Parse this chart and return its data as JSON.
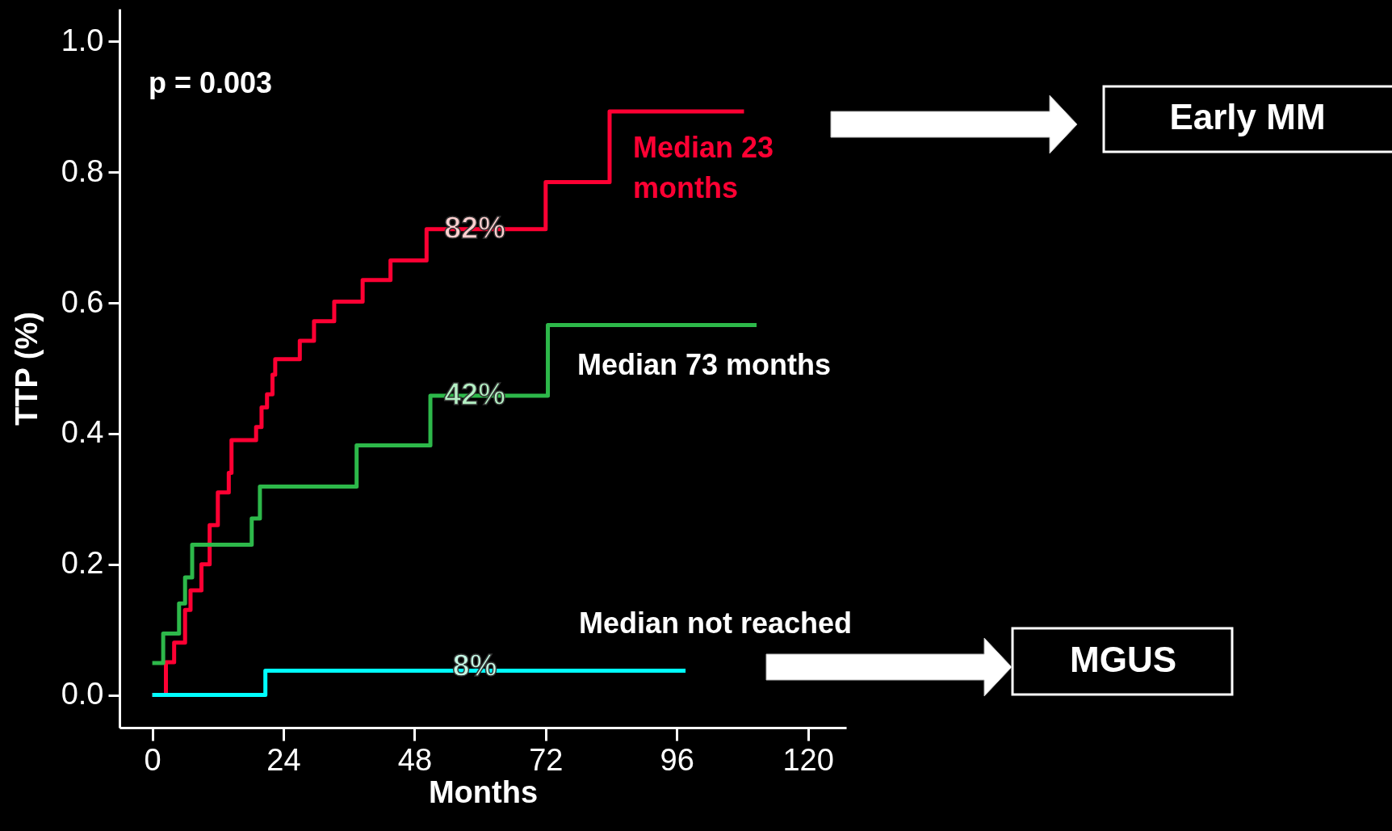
{
  "chart_data": {
    "type": "step",
    "xlabel": "Months",
    "ylabel": "TTP (%)",
    "xlim": [
      -6,
      127
    ],
    "ylim": [
      -0.05,
      1.05
    ],
    "xticks": [
      0,
      24,
      48,
      72,
      96,
      120
    ],
    "yticks": [
      {
        "value": 0,
        "label": "0.0"
      },
      {
        "value": 0.2,
        "label": "0.2"
      },
      {
        "value": 0.4,
        "label": "0.4"
      },
      {
        "value": 0.6,
        "label": "0.6"
      },
      {
        "value": 0.8,
        "label": "0.8"
      },
      {
        "value": 1,
        "label": "1.0"
      }
    ],
    "grid": false,
    "line_style": "solid",
    "series": [
      {
        "color": "#ff0033",
        "x": [
          0,
          2.5,
          4,
          6,
          7,
          9,
          10.5,
          12,
          14,
          14.5,
          19,
          20,
          21,
          22,
          22.5,
          27,
          29.6,
          33.3,
          38.5,
          43.6,
          50.2,
          72,
          83.7,
          108.3
        ],
        "values": [
          0,
          0.05,
          0.08,
          0.13,
          0.16,
          0.2,
          0.26,
          0.31,
          0.34,
          0.39,
          0.41,
          0.44,
          0.46,
          0.49,
          0.514,
          0.542,
          0.572,
          0.602,
          0.635,
          0.665,
          0.713,
          0.785,
          0.893,
          0.893
        ]
      },
      {
        "color": "#2db84a",
        "x": [
          0,
          2,
          4.9,
          6,
          7.3,
          18.2,
          19.7,
          37.4,
          50.9,
          72.4,
          110.6
        ],
        "values": [
          0.049,
          0.094,
          0.14,
          0.18,
          0.23,
          0.27,
          0.319,
          0.382,
          0.458,
          0.566,
          0.566
        ]
      },
      {
        "color": "#00ffff",
        "x": [
          0,
          20.7,
          97.6
        ],
        "values": [
          0,
          0.037,
          0.037
        ]
      }
    ],
    "annotations": [
      "p = 0.003",
      "Median 23 months",
      "Median 73 months",
      "Median not reached",
      "Early MM",
      "MGUS",
      "82%",
      "42%",
      "8%"
    ]
  }
}
